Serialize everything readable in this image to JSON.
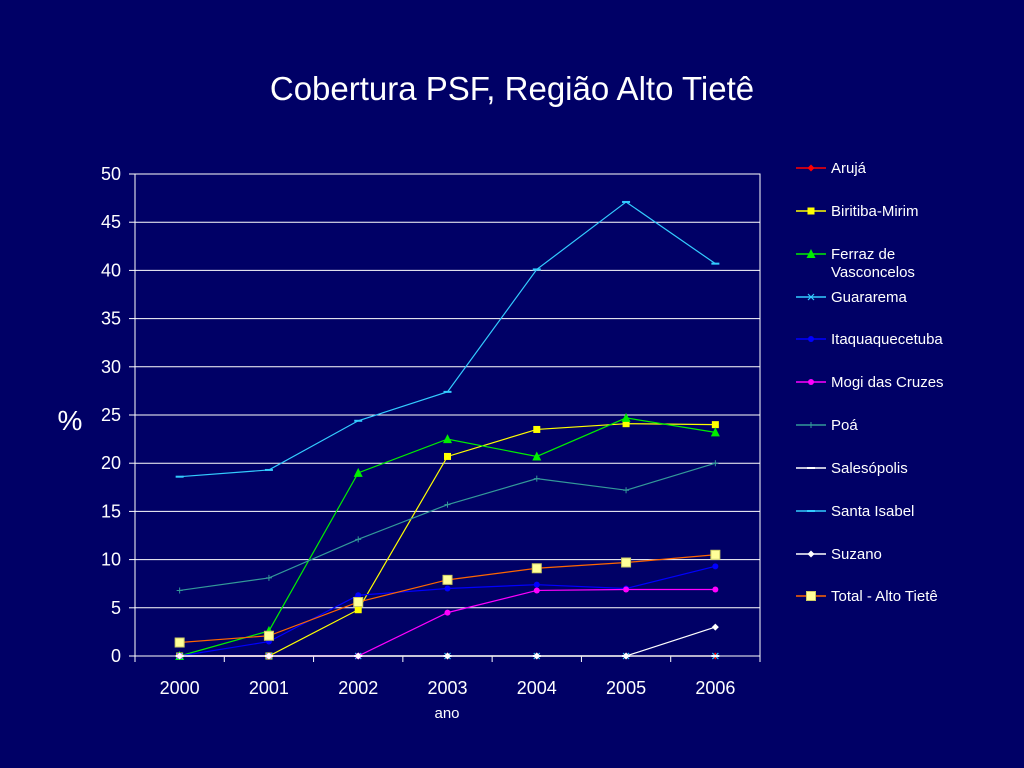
{
  "chart_data": {
    "type": "line",
    "title": "Cobertura PSF, Região Alto Tietê",
    "xlabel": "ano",
    "ylabel": "%",
    "ylim": [
      0,
      50
    ],
    "yticks": [
      0,
      5,
      10,
      15,
      20,
      25,
      30,
      35,
      40,
      45,
      50
    ],
    "categories": [
      "2000",
      "2001",
      "2002",
      "2003",
      "2004",
      "2005",
      "2006"
    ],
    "grid": "horizontal",
    "legend_position": "right",
    "series": [
      {
        "name": "Arujá",
        "color": "#ff0000",
        "marker": "diamond",
        "values": [
          0,
          0,
          0,
          0,
          0,
          0,
          0
        ]
      },
      {
        "name": "Biritiba-Mirim",
        "color": "#ffff00",
        "marker": "square",
        "values": [
          0,
          0,
          4.8,
          20.7,
          23.5,
          24.1,
          24.0
        ]
      },
      {
        "name": "Ferraz de Vasconcelos",
        "color": "#00ee00",
        "marker": "triangle",
        "values": [
          0,
          2.6,
          19.0,
          22.5,
          20.7,
          24.7,
          23.2
        ]
      },
      {
        "name": "Guararema",
        "color": "#33ccff",
        "marker": "x",
        "values": [
          0,
          0,
          0,
          0,
          0,
          0,
          0
        ]
      },
      {
        "name": "Itaquaquecetuba",
        "color": "#0000ff",
        "marker": "circle",
        "values": [
          0,
          1.5,
          6.3,
          7.0,
          7.4,
          7.0,
          9.3
        ]
      },
      {
        "name": "Mogi das Cruzes",
        "color": "#ff00ff",
        "marker": "circle",
        "values": [
          0,
          0,
          0,
          4.5,
          6.8,
          6.9,
          6.9
        ]
      },
      {
        "name": "Poá",
        "color": "#339999",
        "marker": "plus",
        "values": [
          6.8,
          8.1,
          12.1,
          15.7,
          18.4,
          17.2,
          20.0
        ]
      },
      {
        "name": "Salesópolis",
        "color": "#ffffff",
        "marker": "dash",
        "values": [
          0,
          0,
          0,
          0,
          0,
          0,
          0
        ]
      },
      {
        "name": "Santa Isabel",
        "color": "#33ccff",
        "marker": "dash",
        "values": [
          18.6,
          19.3,
          24.4,
          27.4,
          40.1,
          47.1,
          40.7
        ]
      },
      {
        "name": "Suzano",
        "color": "#ffffff",
        "marker": "diamond",
        "values": [
          0,
          0,
          0,
          0,
          0,
          0,
          3.0
        ]
      },
      {
        "name": "Total - Alto Tietê",
        "color": "#ff6600",
        "marker": "bigsquare",
        "values": [
          1.4,
          2.1,
          5.6,
          7.9,
          9.1,
          9.7,
          10.5
        ]
      }
    ]
  }
}
